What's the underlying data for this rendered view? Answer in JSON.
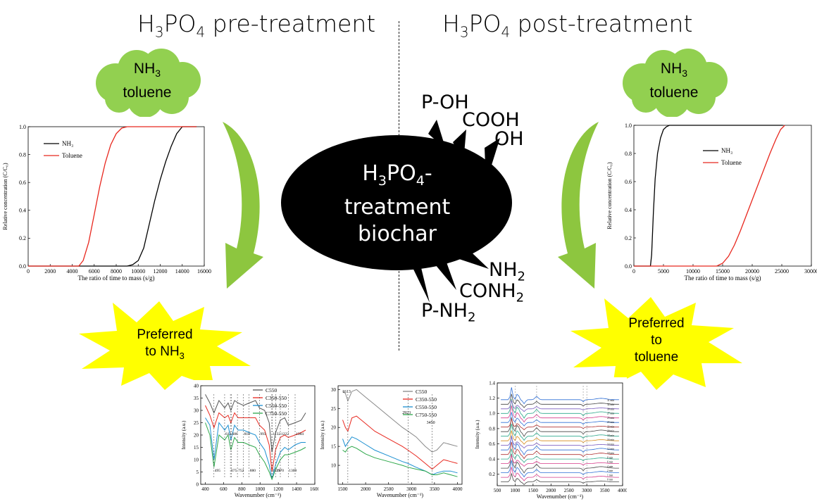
{
  "headers": {
    "left_prefix": "H",
    "left_sub1": "3",
    "left_mid": "PO",
    "left_sub2": "4",
    "left_suffix": " pre-treatment",
    "right_prefix": "H",
    "right_sub1": "3",
    "right_mid": "PO",
    "right_sub2": "4",
    "right_suffix": " post-treatment"
  },
  "left_cloud": {
    "line1": "NH",
    "line1_sub": "3",
    "line2": "toluene"
  },
  "right_cloud": {
    "line1": "NH",
    "line1_sub": "3",
    "line2": "toluene"
  },
  "left_star": {
    "line1": "Preferred",
    "line2": "to NH",
    "line2_sub": "3"
  },
  "right_star": {
    "line1": "Preferred",
    "line2": "to",
    "line3": "toluene"
  },
  "center": {
    "l1a": "H",
    "l1s1": "3",
    "l1b": "PO",
    "l1s2": "4",
    "l1c": "-",
    "l2": "treatment",
    "l3": "biochar"
  },
  "groups": {
    "poh": "P-OH",
    "cooh": "COOH",
    "oh": "OH",
    "nh2": "NH",
    "nh2_sub": "2",
    "conh2": "CONH",
    "conh2_sub": "2",
    "pnh2": "P-NH",
    "pnh2_sub": "2"
  },
  "colors": {
    "cloud": "#92d050",
    "star": "#ffff00",
    "arrow": "#8dc63f",
    "ellipse": "#000000",
    "nh3": "#000000",
    "toluene": "#e8271e"
  },
  "chart_data": [
    {
      "id": "left_breakthrough",
      "type": "line",
      "xlabel": "The ratio of time to mass (s/g)",
      "ylabel": "Relative concentration (C/C₀)",
      "xlim": [
        0,
        16000
      ],
      "ylim": [
        0,
        1.0
      ],
      "xticks": [
        "0",
        "2000",
        "4000",
        "6000",
        "8000",
        "10000",
        "12000",
        "14000",
        "16000"
      ],
      "yticks": [
        "0.0",
        "0.2",
        "0.4",
        "0.6",
        "0.8",
        "1.0"
      ],
      "series": [
        {
          "name": "NH₃",
          "color": "#000000",
          "x": [
            0,
            9000,
            9500,
            10000,
            10500,
            11000,
            11500,
            12000,
            12500,
            13000,
            13500,
            14000,
            15300
          ],
          "y": [
            0,
            0,
            0.01,
            0.04,
            0.13,
            0.3,
            0.47,
            0.62,
            0.75,
            0.86,
            0.95,
            1.0,
            1.0
          ]
        },
        {
          "name": "Toluene",
          "color": "#e8271e",
          "x": [
            0,
            4600,
            5000,
            5500,
            6000,
            6500,
            7000,
            7500,
            8000,
            8500,
            9000,
            9400,
            15300
          ],
          "y": [
            0,
            0,
            0.04,
            0.17,
            0.37,
            0.57,
            0.74,
            0.87,
            0.95,
            0.99,
            1.0,
            1.0,
            1.0
          ]
        }
      ]
    },
    {
      "id": "right_breakthrough",
      "type": "line",
      "xlabel": "The ratio of time to mass (s/g)",
      "ylabel": "Relative concentration (C/C₀)",
      "xlim": [
        0,
        30000
      ],
      "ylim": [
        0,
        1.0
      ],
      "xticks": [
        "0",
        "5000",
        "10000",
        "15000",
        "20000",
        "25000",
        "30000"
      ],
      "yticks": [
        "0.0",
        "0.2",
        "0.4",
        "0.6",
        "0.8",
        "1.0"
      ],
      "series": [
        {
          "name": "NH₃",
          "color": "#000000",
          "x": [
            0,
            2800,
            3000,
            3300,
            3600,
            4000,
            4500,
            5000,
            5500,
            6000,
            25200
          ],
          "y": [
            0,
            0,
            0.08,
            0.38,
            0.62,
            0.8,
            0.91,
            0.97,
            0.99,
            1.0,
            1.0
          ]
        },
        {
          "name": "Toluene",
          "color": "#e8271e",
          "x": [
            0,
            14000,
            15000,
            16000,
            17000,
            18000,
            19000,
            20000,
            21000,
            22000,
            23000,
            24000,
            24800,
            25500
          ],
          "y": [
            0,
            0,
            0.02,
            0.07,
            0.15,
            0.25,
            0.36,
            0.47,
            0.58,
            0.69,
            0.8,
            0.9,
            0.97,
            1.0
          ]
        }
      ]
    },
    {
      "id": "ftir",
      "type": "line",
      "xlabel": "Wavenumber (cm⁻¹)",
      "ylabel": "Intensity (a.u.)",
      "xlim": [
        350,
        1600
      ],
      "ylim": [
        0,
        40
      ],
      "xticks": [
        "400",
        "600",
        "800",
        "1000",
        "1200",
        "1400",
        "1600"
      ],
      "yticks": [
        "0",
        "5",
        "10",
        "15",
        "20",
        "25",
        "30",
        "35",
        "40"
      ],
      "peak_labels": [
        "495",
        "612",
        "675",
        "686",
        "752",
        "818",
        "880",
        "993",
        "1129",
        "1132",
        "1170",
        "1222",
        "1309",
        "1384"
      ],
      "series": [
        {
          "name": "C550",
          "color": "#555555",
          "x": [
            400,
            450,
            495,
            550,
            612,
            650,
            680,
            720,
            760,
            818,
            880,
            950,
            993,
            1050,
            1100,
            1130,
            1170,
            1222,
            1270,
            1309,
            1384,
            1450,
            1500
          ],
          "y": [
            36.5,
            33,
            29,
            34,
            31,
            33,
            30,
            34,
            33,
            32,
            33,
            34,
            31,
            30,
            25,
            13,
            21,
            26,
            27,
            24,
            25,
            26,
            29
          ]
        },
        {
          "name": "C350-550",
          "color": "#e8271e",
          "x": [
            400,
            450,
            495,
            550,
            612,
            650,
            680,
            720,
            760,
            818,
            880,
            950,
            993,
            1050,
            1100,
            1130,
            1170,
            1222,
            1270,
            1309,
            1384,
            1450,
            1500
          ],
          "y": [
            32,
            28,
            23,
            29,
            27,
            28,
            25,
            29,
            27,
            27,
            27,
            27,
            24,
            22,
            16,
            5,
            14,
            19,
            20,
            19,
            20,
            21,
            22
          ]
        },
        {
          "name": "C550-550",
          "color": "#1b8fd1",
          "x": [
            400,
            450,
            495,
            550,
            612,
            650,
            680,
            720,
            760,
            818,
            880,
            950,
            993,
            1050,
            1100,
            1130,
            1170,
            1222,
            1270,
            1309,
            1384,
            1450,
            1500
          ],
          "y": [
            27,
            24,
            10,
            25,
            22,
            24,
            18,
            24,
            22,
            22,
            21,
            20,
            17,
            14,
            8,
            2,
            8,
            13,
            15,
            14,
            16,
            17,
            17
          ]
        },
        {
          "name": "C750-550",
          "color": "#2da84a",
          "x": [
            400,
            450,
            495,
            550,
            612,
            650,
            680,
            720,
            760,
            818,
            880,
            950,
            993,
            1050,
            1100,
            1130,
            1170,
            1222,
            1270,
            1309,
            1384,
            1450,
            1500
          ],
          "y": [
            25,
            20,
            7,
            20,
            18,
            20,
            14,
            19,
            17,
            17,
            16,
            15,
            12,
            9,
            5,
            2,
            6,
            10,
            12,
            12,
            13,
            14,
            15
          ]
        }
      ]
    },
    {
      "id": "ftir_high",
      "type": "line",
      "xlabel": "Wavenumber (cm⁻¹)",
      "ylabel": "Intensity (a.u.)",
      "xlim": [
        1400,
        4100
      ],
      "ylim": [
        5,
        31
      ],
      "xticks": [
        "1500",
        "2000",
        "2500",
        "3000",
        "3500",
        "4000"
      ],
      "yticks": [
        "10",
        "15",
        "20",
        "25",
        "30"
      ],
      "peak_labels": [
        "1613",
        "2923",
        "3450"
      ],
      "series": [
        {
          "name": "C550",
          "color": "#888888",
          "x": [
            1500,
            1560,
            1613,
            1700,
            1800,
            2000,
            2200,
            2500,
            2800,
            2923,
            3100,
            3300,
            3450,
            3550,
            3700,
            3850,
            4000
          ],
          "y": [
            29.5,
            29,
            27,
            29.5,
            30,
            28,
            26,
            23,
            20,
            19,
            17.5,
            15,
            13.5,
            14,
            16,
            15.5,
            15
          ]
        },
        {
          "name": "C350-550",
          "color": "#e8271e",
          "x": [
            1500,
            1560,
            1613,
            1700,
            1800,
            2000,
            2200,
            2500,
            2800,
            2923,
            3100,
            3300,
            3450,
            3550,
            3700,
            3850,
            4000
          ],
          "y": [
            22,
            20,
            19,
            22.5,
            23,
            21,
            19,
            17,
            15,
            14,
            12.5,
            10.5,
            9,
            10,
            11.5,
            11,
            10.5
          ]
        },
        {
          "name": "C550-550",
          "color": "#1b8fd1",
          "x": [
            1500,
            1560,
            1613,
            1700,
            1800,
            2000,
            2200,
            2500,
            2800,
            2923,
            3100,
            3300,
            3450,
            3550,
            3700,
            3850,
            4000
          ],
          "y": [
            17,
            15,
            16,
            17.5,
            17,
            15.5,
            14,
            12.5,
            11,
            10.5,
            9.5,
            8.5,
            7.5,
            8,
            8.5,
            8.5,
            8
          ]
        },
        {
          "name": "C750-550",
          "color": "#2da84a",
          "x": [
            1500,
            1560,
            1613,
            1700,
            1800,
            2000,
            2200,
            2500,
            2800,
            2923,
            3100,
            3300,
            3450,
            3550,
            3700,
            3850,
            4000
          ],
          "y": [
            14,
            13.5,
            14.5,
            15,
            14.5,
            13,
            12,
            11,
            10,
            9.5,
            9,
            8.5,
            7.5,
            7.5,
            8,
            7.5,
            7
          ]
        }
      ]
    },
    {
      "id": "insitu_ftir",
      "type": "line",
      "xlabel": "Wavenumber (cm⁻¹)",
      "ylabel": "Intensity (a.u.)",
      "xlim": [
        500,
        4000
      ],
      "ylim": [
        0.05,
        1.4
      ],
      "xticks": [
        "500",
        "1000",
        "1500",
        "2000",
        "2500",
        "3000",
        "3500",
        "4000"
      ],
      "yticks": [
        "0.2",
        "0.4",
        "0.6",
        "0.8",
        "1.0",
        "1.2",
        "1.4"
      ],
      "offsets": [
        0.1,
        0.16,
        0.22,
        0.28,
        0.34,
        0.4,
        0.46,
        0.52,
        0.58,
        0.64,
        0.7,
        0.76,
        0.82,
        0.88,
        0.94,
        1.0,
        1.06,
        1.12,
        1.18
      ],
      "series_colors": [
        "#444444",
        "#d63a8a",
        "#2f6fd6",
        "#444444",
        "#d63a8a",
        "#2aa88b",
        "#b03030",
        "#2f6fd6",
        "#7a5cc0",
        "#d68a1a",
        "#2aa88b",
        "#444444",
        "#b03030",
        "#2f6fd6",
        "#d63a8a",
        "#2aa88b",
        "#7a5cc0",
        "#444444",
        "#2f6fd6"
      ],
      "series_labels": [
        "31 min",
        "32 min",
        "30 min",
        "27 min",
        "25 min",
        "24 min",
        "22 min",
        "20 min",
        "18 min",
        "16 min",
        "14 min",
        "12 min",
        "10 min",
        "8 min",
        "6 min",
        "4 min",
        "2 min",
        "1 min",
        "0 min"
      ]
    }
  ]
}
